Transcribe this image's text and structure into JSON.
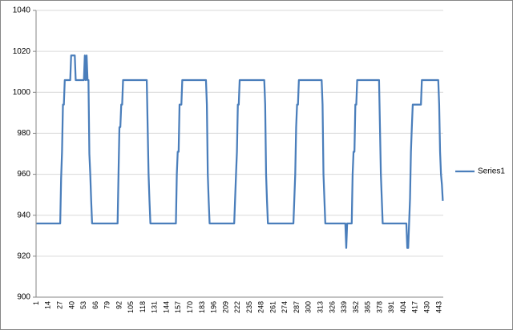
{
  "chart_data": {
    "type": "line",
    "categories": [
      1,
      null,
      null,
      null,
      null,
      null,
      null,
      null,
      null,
      null,
      null,
      null,
      null,
      14,
      null,
      null,
      null,
      null,
      null,
      null,
      null,
      null,
      null,
      null,
      null,
      null,
      27,
      null,
      null,
      null,
      null,
      null,
      null,
      null,
      null,
      null,
      null,
      null,
      null,
      40,
      null,
      null,
      null,
      null,
      null,
      null,
      null,
      null,
      null,
      null,
      null,
      null,
      53,
      null,
      null,
      null,
      null,
      null,
      null,
      null,
      null,
      null,
      null,
      null,
      null,
      66,
      null,
      null,
      null,
      null,
      null,
      null,
      null,
      null,
      null,
      null,
      null,
      null,
      79,
      null,
      null,
      null,
      null,
      null,
      null,
      null,
      null,
      null,
      null,
      null,
      null,
      92,
      null,
      null,
      null,
      null,
      null,
      null,
      null,
      null,
      null,
      null,
      null,
      null,
      105,
      null,
      null,
      null,
      null,
      null,
      null,
      null,
      null,
      null,
      null,
      null,
      null,
      118,
      null,
      null,
      null,
      null,
      null,
      null,
      null,
      null,
      null,
      null,
      null,
      null,
      131,
      null,
      null,
      null,
      null,
      null,
      null,
      null,
      null,
      null,
      null,
      null,
      null,
      144,
      null,
      null,
      null,
      null,
      null,
      null,
      null,
      null,
      null,
      null,
      null,
      null,
      157,
      null,
      null,
      null,
      null,
      null,
      null,
      null,
      null,
      null,
      null,
      null,
      null,
      170,
      null,
      null,
      null,
      null,
      null,
      null,
      null,
      null,
      null,
      null,
      null,
      null,
      183,
      null,
      null,
      null,
      null,
      null,
      null,
      null,
      null,
      null,
      null,
      null,
      null,
      196,
      null,
      null,
      null,
      null,
      null,
      null,
      null,
      null,
      null,
      null,
      null,
      null,
      209,
      null,
      null,
      null,
      null,
      null,
      null,
      null,
      null,
      null,
      null,
      null,
      null,
      222,
      null,
      null,
      null,
      null,
      null,
      null,
      null,
      null,
      null,
      null,
      null,
      null,
      235,
      null,
      null,
      null,
      null,
      null,
      null,
      null,
      null,
      null,
      null,
      null,
      null,
      248,
      null,
      null,
      null,
      null,
      null,
      null,
      null,
      null,
      null,
      null,
      null,
      null,
      261,
      null,
      null,
      null,
      null,
      null,
      null,
      null,
      null,
      null,
      null,
      null,
      null,
      274,
      null,
      null,
      null,
      null,
      null,
      null,
      null,
      null,
      null,
      null,
      null,
      null,
      287,
      null,
      null,
      null,
      null,
      null,
      null,
      null,
      null,
      null,
      null,
      null,
      null,
      300,
      null,
      null,
      null,
      null,
      null,
      null,
      null,
      null,
      null,
      null,
      null,
      null,
      313,
      null,
      null,
      null,
      null,
      null,
      null,
      null,
      null,
      null,
      null,
      null,
      null,
      326,
      null,
      null,
      null,
      null,
      null,
      null,
      null,
      null,
      null,
      null,
      null,
      null,
      339,
      null,
      null,
      null,
      null,
      null,
      null,
      null,
      null,
      null,
      null,
      null,
      null,
      352,
      null,
      null,
      null,
      null,
      null,
      null,
      null,
      null,
      null,
      null,
      null,
      null,
      365,
      null,
      null,
      null,
      null,
      null,
      null,
      null,
      null,
      null,
      null,
      null,
      null,
      378,
      null,
      null,
      null,
      null,
      null,
      null,
      null,
      null,
      null,
      null,
      null,
      null,
      391,
      null,
      null,
      null,
      null,
      null,
      null,
      null,
      null,
      null,
      null,
      null,
      null,
      404,
      null,
      null,
      null,
      null,
      null,
      null,
      null,
      null,
      null,
      null,
      null,
      null,
      417,
      null,
      null,
      null,
      null,
      null,
      null,
      null,
      null,
      null,
      null,
      null,
      null,
      430,
      null,
      null,
      null,
      null,
      null,
      null,
      null,
      null,
      null,
      null,
      null,
      null,
      443,
      null,
      null,
      null,
      null
    ],
    "series": [
      {
        "name": "Series1",
        "color": "#4a7ebb",
        "values": [
          936,
          936,
          936,
          936,
          936,
          936,
          936,
          936,
          936,
          936,
          936,
          936,
          936,
          936,
          936,
          936,
          936,
          936,
          936,
          936,
          936,
          936,
          936,
          936,
          936,
          936,
          936,
          958,
          971,
          994,
          994,
          1006,
          1006,
          1006,
          1006,
          1006,
          1006,
          1006,
          1018,
          1018,
          1018,
          1018,
          1018,
          1006,
          1006,
          1006,
          1006,
          1006,
          1006,
          1006,
          1006,
          1006,
          1006,
          1018,
          1006,
          1018,
          1006,
          1006,
          970,
          960,
          947,
          936,
          936,
          936,
          936,
          936,
          936,
          936,
          936,
          936,
          936,
          936,
          936,
          936,
          936,
          936,
          936,
          936,
          936,
          936,
          936,
          936,
          936,
          936,
          936,
          936,
          936,
          936,
          936,
          936,
          960,
          983,
          983,
          994,
          994,
          1006,
          1006,
          1006,
          1006,
          1006,
          1006,
          1006,
          1006,
          1006,
          1006,
          1006,
          1006,
          1006,
          1006,
          1006,
          1006,
          1006,
          1006,
          1006,
          1006,
          1006,
          1006,
          1006,
          1006,
          1006,
          1006,
          1006,
          983,
          960,
          947,
          936,
          936,
          936,
          936,
          936,
          936,
          936,
          936,
          936,
          936,
          936,
          936,
          936,
          936,
          936,
          936,
          936,
          936,
          936,
          936,
          936,
          936,
          936,
          936,
          936,
          936,
          936,
          936,
          936,
          960,
          971,
          971,
          994,
          994,
          994,
          1006,
          1006,
          1006,
          1006,
          1006,
          1006,
          1006,
          1006,
          1006,
          1006,
          1006,
          1006,
          1006,
          1006,
          1006,
          1006,
          1006,
          1006,
          1006,
          1006,
          1006,
          1006,
          1006,
          1006,
          1006,
          1006,
          1006,
          994,
          960,
          947,
          936,
          936,
          936,
          936,
          936,
          936,
          936,
          936,
          936,
          936,
          936,
          936,
          936,
          936,
          936,
          936,
          936,
          936,
          936,
          936,
          936,
          936,
          936,
          936,
          936,
          936,
          936,
          936,
          948,
          960,
          971,
          994,
          994,
          1006,
          1006,
          1006,
          1006,
          1006,
          1006,
          1006,
          1006,
          1006,
          1006,
          1006,
          1006,
          1006,
          1006,
          1006,
          1006,
          1006,
          1006,
          1006,
          1006,
          1006,
          1006,
          1006,
          1006,
          1006,
          1006,
          1006,
          1006,
          994,
          960,
          947,
          936,
          936,
          936,
          936,
          936,
          936,
          936,
          936,
          936,
          936,
          936,
          936,
          936,
          936,
          936,
          936,
          936,
          936,
          936,
          936,
          936,
          936,
          936,
          936,
          936,
          936,
          936,
          936,
          936,
          948,
          960,
          983,
          994,
          994,
          1006,
          1006,
          1006,
          1006,
          1006,
          1006,
          1006,
          1006,
          1006,
          1006,
          1006,
          1006,
          1006,
          1006,
          1006,
          1006,
          1006,
          1006,
          1006,
          1006,
          1006,
          1006,
          1006,
          1006,
          1006,
          1006,
          994,
          960,
          948,
          936,
          936,
          936,
          936,
          936,
          936,
          936,
          936,
          936,
          936,
          936,
          936,
          936,
          936,
          936,
          936,
          936,
          936,
          936,
          936,
          936,
          936,
          936,
          924,
          936,
          936,
          936,
          936,
          936,
          936,
          960,
          971,
          971,
          994,
          994,
          1006,
          1006,
          1006,
          1006,
          1006,
          1006,
          1006,
          1006,
          1006,
          1006,
          1006,
          1006,
          1006,
          1006,
          1006,
          1006,
          1006,
          1006,
          1006,
          1006,
          1006,
          1006,
          1006,
          1006,
          1006,
          983,
          960,
          948,
          936,
          936,
          936,
          936,
          936,
          936,
          936,
          936,
          936,
          936,
          936,
          936,
          936,
          936,
          936,
          936,
          936,
          936,
          936,
          936,
          936,
          936,
          936,
          936,
          936,
          936,
          936,
          924,
          924,
          936,
          948,
          971,
          983,
          994,
          994,
          994,
          994,
          994,
          994,
          994,
          994,
          994,
          994,
          1006,
          1006,
          1006,
          1006,
          1006,
          1006,
          1006,
          1006,
          1006,
          1006,
          1006,
          1006,
          1006,
          1006,
          1006,
          1006,
          1006,
          1006,
          1006,
          994,
          971,
          960,
          955,
          947
        ]
      }
    ],
    "ylim": [
      900,
      1040
    ],
    "yticks": [
      900,
      920,
      940,
      960,
      980,
      1000,
      1020,
      1040
    ],
    "grid": true,
    "legend": "right"
  }
}
